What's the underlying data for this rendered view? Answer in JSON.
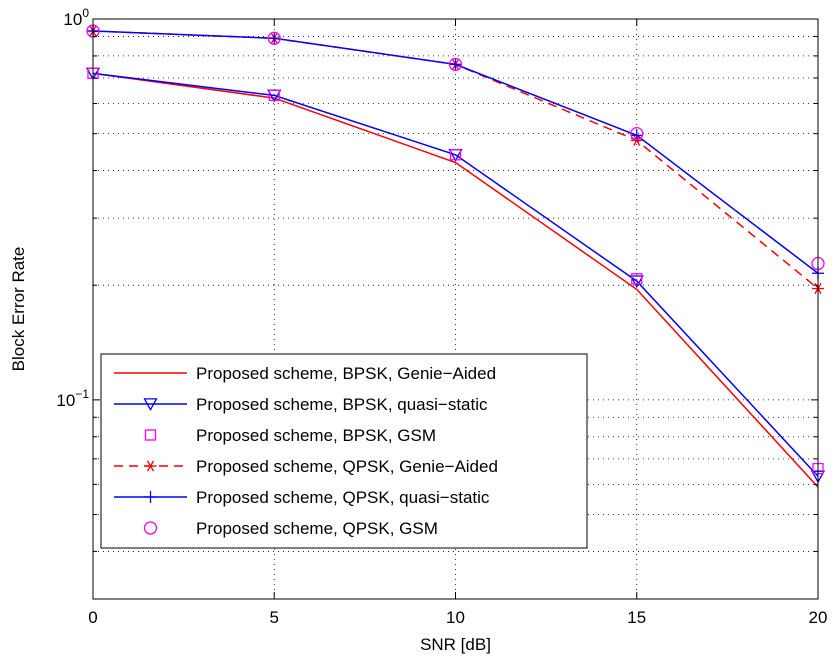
{
  "chart_data": {
    "type": "line",
    "xlabel": "SNR [dB]",
    "ylabel": "Block Error Rate",
    "xlim": [
      0,
      20
    ],
    "ylim": [
      0.03,
      1
    ],
    "yscale": "log",
    "grid": true,
    "legend_position": "bottom-left",
    "x": [
      0,
      5,
      10,
      15,
      20
    ],
    "x_ticks": [
      "0",
      "5",
      "10",
      "15",
      "20"
    ],
    "y_ticks": [
      {
        "value": 1,
        "base": "10",
        "exp": "0"
      },
      {
        "value": 0.1,
        "base": "10",
        "exp": "−1"
      }
    ],
    "series": [
      {
        "name": "Proposed scheme, BPSK, Genie−Aided",
        "values": [
          0.72,
          0.62,
          0.42,
          0.195,
          0.059
        ],
        "color": "#ff0000",
        "line": "solid",
        "marker": "none"
      },
      {
        "name": "Proposed scheme, BPSK, quasi−static",
        "values": [
          0.72,
          0.63,
          0.44,
          0.205,
          0.063
        ],
        "color": "#0000ff",
        "line": "solid",
        "marker": "triangle-down"
      },
      {
        "name": "Proposed scheme, BPSK, GSM",
        "values": [
          0.72,
          0.63,
          0.44,
          0.208,
          0.066
        ],
        "color": "#ff00ff",
        "line": "none",
        "marker": "square"
      },
      {
        "name": "Proposed scheme, QPSK, Genie−Aided",
        "values": [
          0.93,
          0.89,
          0.76,
          0.48,
          0.196
        ],
        "color": "#ff0000",
        "line": "dashed",
        "marker": "asterisk"
      },
      {
        "name": "Proposed scheme, QPSK, quasi−static",
        "values": [
          0.93,
          0.89,
          0.76,
          0.495,
          0.215
        ],
        "color": "#0000ff",
        "line": "solid",
        "marker": "plus"
      },
      {
        "name": "Proposed scheme, QPSK, GSM",
        "values": [
          0.93,
          0.89,
          0.76,
          0.5,
          0.228
        ],
        "color": "#ff00ff",
        "line": "none",
        "marker": "circle"
      }
    ]
  }
}
